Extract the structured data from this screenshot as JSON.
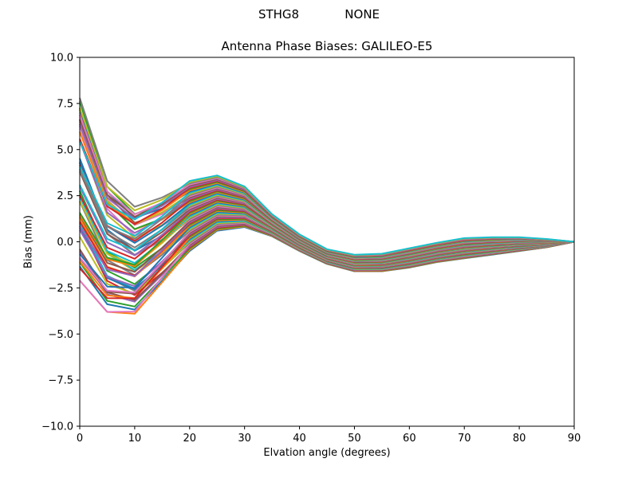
{
  "figure": {
    "suptitle": "STHG8            NONE",
    "title": "Antenna Phase Biases: GALILEO-E5",
    "xlabel": "Elvation angle (degrees)",
    "ylabel": "Bias (mm)"
  },
  "chart_data": {
    "type": "line",
    "title": "Antenna Phase Biases: GALILEO-E5",
    "suptitle": "STHG8            NONE",
    "xlabel": "Elvation angle (degrees)",
    "ylabel": "Bias (mm)",
    "xlim": [
      0,
      90
    ],
    "ylim": [
      -10,
      10
    ],
    "xticks": [
      0,
      10,
      20,
      30,
      40,
      50,
      60,
      70,
      80,
      90
    ],
    "xtick_labels": [
      "0",
      "10",
      "20",
      "30",
      "40",
      "50",
      "60",
      "70",
      "80",
      "90"
    ],
    "yticks": [
      10,
      7.5,
      5,
      2.5,
      0,
      -2.5,
      -5,
      -7.5,
      -10
    ],
    "ytick_labels": [
      "10.0",
      "7.5",
      "5.0",
      "2.5",
      "0.0",
      "−2.5",
      "−5.0",
      "−7.5",
      "−10.0"
    ],
    "grid": false,
    "legend": false,
    "x": [
      0,
      5,
      10,
      15,
      20,
      25,
      30,
      35,
      40,
      45,
      50,
      55,
      60,
      65,
      70,
      75,
      80,
      85,
      90
    ],
    "envelope_max": [
      7.8,
      3.3,
      1.9,
      2.4,
      3.3,
      3.6,
      3.0,
      1.5,
      0.4,
      -0.4,
      -0.7,
      -0.65,
      -0.35,
      -0.05,
      0.2,
      0.25,
      0.25,
      0.15,
      0.0
    ],
    "envelope_min": [
      -2.1,
      -3.8,
      -3.9,
      -2.2,
      -0.5,
      0.6,
      0.8,
      0.3,
      -0.5,
      -1.2,
      -1.6,
      -1.6,
      -1.4,
      -1.1,
      -0.9,
      -0.7,
      -0.5,
      -0.3,
      0.0
    ],
    "series_count": 60,
    "colors": [
      "#1f77b4",
      "#ff7f0e",
      "#2ca02c",
      "#d62728",
      "#9467bd",
      "#8c564b",
      "#e377c2",
      "#7f7f7f",
      "#bcbd22",
      "#17becf"
    ],
    "series_note": "Approx. 60 overlapping curves (one per azimuth); each spans between envelope_min and envelope_max, all converging to 0.0 at 90 degrees."
  }
}
